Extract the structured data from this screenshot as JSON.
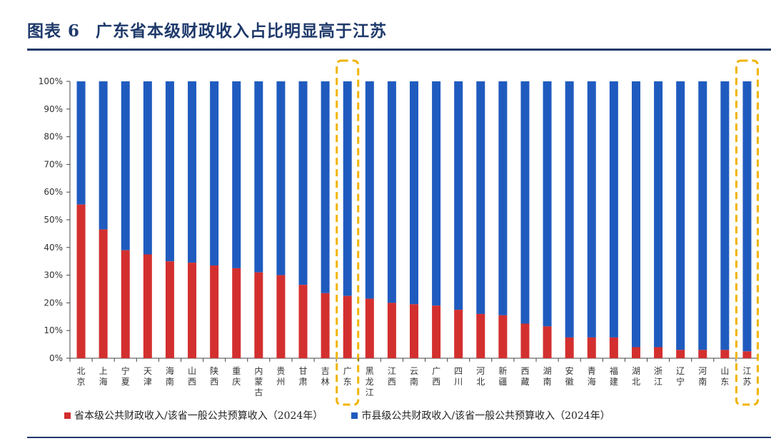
{
  "header": {
    "figure_label": "图表 6",
    "title": "广东省本级财政收入占比明显高于江苏"
  },
  "colors": {
    "provincial": "#d32f2f",
    "county": "#1f5bbf",
    "highlight": "#f0b400",
    "axis": "#444444"
  },
  "legend": {
    "provincial_label": "省本级公共财政收入/该省一般公共预算收入（2024年）",
    "county_label": "市县级公共财政收入/该省一般公共预算收入（2024年）"
  },
  "chart_data": {
    "type": "bar",
    "stacked": true,
    "ylim": [
      0,
      100
    ],
    "y_ticks": [
      "0%",
      "10%",
      "20%",
      "30%",
      "40%",
      "50%",
      "60%",
      "70%",
      "80%",
      "90%",
      "100%"
    ],
    "categories": [
      "北京",
      "上海",
      "宁夏",
      "天津",
      "海南",
      "山西",
      "陕西",
      "重庆",
      "内蒙古",
      "贵州",
      "甘肃",
      "吉林",
      "广东",
      "黑龙江",
      "江西",
      "云南",
      "广西",
      "四川",
      "河北",
      "新疆",
      "西藏",
      "湖南",
      "安徽",
      "青海",
      "福建",
      "湖北",
      "浙江",
      "辽宁",
      "河南",
      "山东",
      "江苏"
    ],
    "series": [
      {
        "name": "省本级公共财政收入/该省一般公共预算收入（2024年）",
        "values": [
          55.5,
          46.5,
          39,
          37.5,
          35,
          34.5,
          33.5,
          32.5,
          31,
          30,
          26.5,
          23.5,
          22.5,
          21.5,
          20,
          19.5,
          19,
          17.5,
          16,
          15.5,
          12.5,
          11.5,
          7.5,
          7.5,
          7.5,
          4,
          4,
          3,
          3,
          3,
          2.5
        ]
      },
      {
        "name": "市县级公共财政收入/该省一般公共预算收入（2024年）",
        "values": [
          44.5,
          53.5,
          61,
          62.5,
          65,
          65.5,
          66.5,
          67.5,
          69,
          70,
          73.5,
          76.5,
          77.5,
          78.5,
          80,
          80.5,
          81,
          82.5,
          84,
          84.5,
          87.5,
          88.5,
          92.5,
          92.5,
          92.5,
          96,
          96,
          97,
          97,
          97,
          97.5
        ]
      }
    ],
    "highlighted_categories": [
      "广东",
      "江苏"
    ]
  }
}
